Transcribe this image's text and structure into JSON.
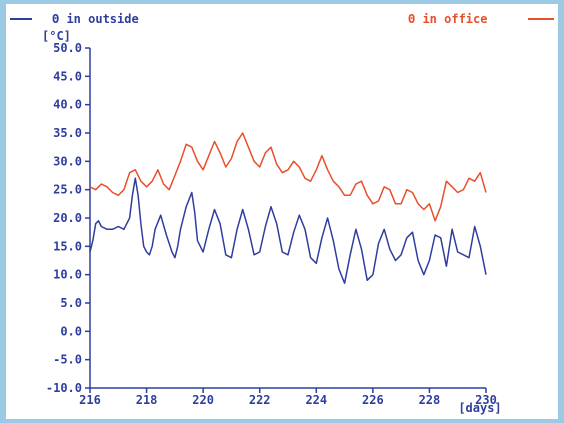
{
  "chart_data": {
    "type": "line",
    "title": "",
    "xlabel": "[days]",
    "ylabel": "[°C]",
    "xlim": [
      216,
      230
    ],
    "ylim": [
      -10,
      50
    ],
    "xticks": [
      216,
      218,
      220,
      222,
      224,
      226,
      228,
      230
    ],
    "xtick_labels": [
      "216",
      "218",
      "220",
      "222",
      "224",
      "226",
      "228",
      "230"
    ],
    "yticks": [
      -10,
      -5,
      0,
      5,
      10,
      15,
      20,
      25,
      30,
      35,
      40,
      45,
      50
    ],
    "ytick_labels": [
      "-10.0",
      "-5.0",
      "0.0",
      "5.0",
      "10.0",
      "15.0",
      "20.0",
      "25.0",
      "30.0",
      "35.0",
      "40.0",
      "45.0",
      "50.0"
    ],
    "grid": false,
    "legend_position": "top",
    "colors": {
      "outside": "#2f3e9e",
      "office": "#e8502c",
      "axis": "#2f3e9e"
    },
    "series": [
      {
        "name": "Θ in outside",
        "x": [
          216.0,
          216.1,
          216.2,
          216.3,
          216.4,
          216.6,
          216.8,
          217.0,
          217.2,
          217.4,
          217.5,
          217.6,
          217.7,
          217.8,
          217.9,
          218.0,
          218.1,
          218.2,
          218.3,
          218.5,
          218.7,
          218.9,
          219.0,
          219.1,
          219.2,
          219.4,
          219.6,
          219.7,
          219.8,
          220.0,
          220.2,
          220.4,
          220.6,
          220.8,
          221.0,
          221.2,
          221.4,
          221.6,
          221.8,
          222.0,
          222.2,
          222.4,
          222.6,
          222.8,
          223.0,
          223.2,
          223.4,
          223.6,
          223.8,
          224.0,
          224.2,
          224.4,
          224.6,
          224.8,
          225.0,
          225.2,
          225.4,
          225.6,
          225.8,
          226.0,
          226.2,
          226.4,
          226.6,
          226.8,
          227.0,
          227.2,
          227.4,
          227.6,
          227.8,
          228.0,
          228.2,
          228.4,
          228.6,
          228.8,
          229.0,
          229.2,
          229.4,
          229.6,
          229.8,
          230.0
        ],
        "y": [
          14,
          16,
          19,
          19.5,
          18.5,
          18,
          18,
          18.5,
          18,
          20,
          24,
          27,
          24,
          19,
          15,
          14,
          13.5,
          15,
          18,
          20.5,
          17,
          14,
          13,
          15,
          18,
          22,
          24.5,
          21,
          16,
          14,
          18,
          21.5,
          19,
          13.5,
          13,
          18,
          21.5,
          18,
          13.5,
          14,
          18.5,
          22,
          19,
          14,
          13.5,
          17.5,
          20.5,
          18,
          13,
          12,
          16.5,
          20,
          16,
          11,
          8.5,
          13.5,
          18,
          14.5,
          9,
          10,
          15.5,
          18,
          14.5,
          12.5,
          13.5,
          16.5,
          17.5,
          12.5,
          10,
          12.5,
          17,
          16.5,
          11.5,
          18,
          14,
          13.5,
          13,
          18.5,
          15,
          10
        ]
      },
      {
        "name": "Θ in office",
        "x": [
          216.0,
          216.2,
          216.4,
          216.6,
          216.8,
          217.0,
          217.2,
          217.4,
          217.6,
          217.8,
          218.0,
          218.2,
          218.4,
          218.6,
          218.8,
          219.0,
          219.2,
          219.4,
          219.6,
          219.8,
          220.0,
          220.2,
          220.4,
          220.6,
          220.8,
          221.0,
          221.2,
          221.4,
          221.6,
          221.8,
          222.0,
          222.2,
          222.4,
          222.6,
          222.8,
          223.0,
          223.2,
          223.4,
          223.6,
          223.8,
          224.0,
          224.2,
          224.4,
          224.6,
          224.8,
          225.0,
          225.2,
          225.4,
          225.6,
          225.8,
          226.0,
          226.2,
          226.4,
          226.6,
          226.8,
          227.0,
          227.2,
          227.4,
          227.6,
          227.8,
          228.0,
          228.2,
          228.4,
          228.6,
          228.8,
          229.0,
          229.2,
          229.4,
          229.6,
          229.8,
          230.0
        ],
        "y": [
          25.5,
          25,
          26,
          25.5,
          24.5,
          24,
          25,
          28,
          28.5,
          26.5,
          25.5,
          26.5,
          28.5,
          26,
          25,
          27.5,
          30,
          33,
          32.5,
          30,
          28.5,
          31,
          33.5,
          31.5,
          29,
          30.5,
          33.5,
          35,
          32.5,
          30,
          29,
          31.5,
          32.5,
          29.5,
          28,
          28.5,
          30,
          29,
          27,
          26.5,
          28.5,
          31,
          28.5,
          26.5,
          25.5,
          24,
          24,
          26,
          26.5,
          24,
          22.5,
          23,
          25.5,
          25,
          22.5,
          22.5,
          25,
          24.5,
          22.5,
          21.5,
          22.5,
          19.5,
          22,
          26.5,
          25.5,
          24.5,
          25,
          27,
          26.5,
          28,
          24.5
        ]
      }
    ]
  }
}
